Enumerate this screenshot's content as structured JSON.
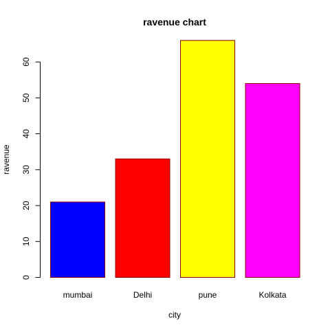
{
  "chart_data": {
    "type": "bar",
    "title": "ravenue chart",
    "xlabel": "city",
    "ylabel": "ravenue",
    "categories": [
      "mumbai",
      "Delhi",
      "pune",
      "Kolkata"
    ],
    "values": [
      21,
      33,
      66,
      54
    ],
    "bar_colors": [
      "#0000ff",
      "#ff0000",
      "#ffff00",
      "#ff00ff"
    ],
    "bar_border_color": "#8b0000",
    "ylim": [
      0,
      70
    ],
    "yticks": [
      "0",
      "10",
      "20",
      "30",
      "40",
      "50",
      "60"
    ],
    "grid": false,
    "legend": "none"
  }
}
